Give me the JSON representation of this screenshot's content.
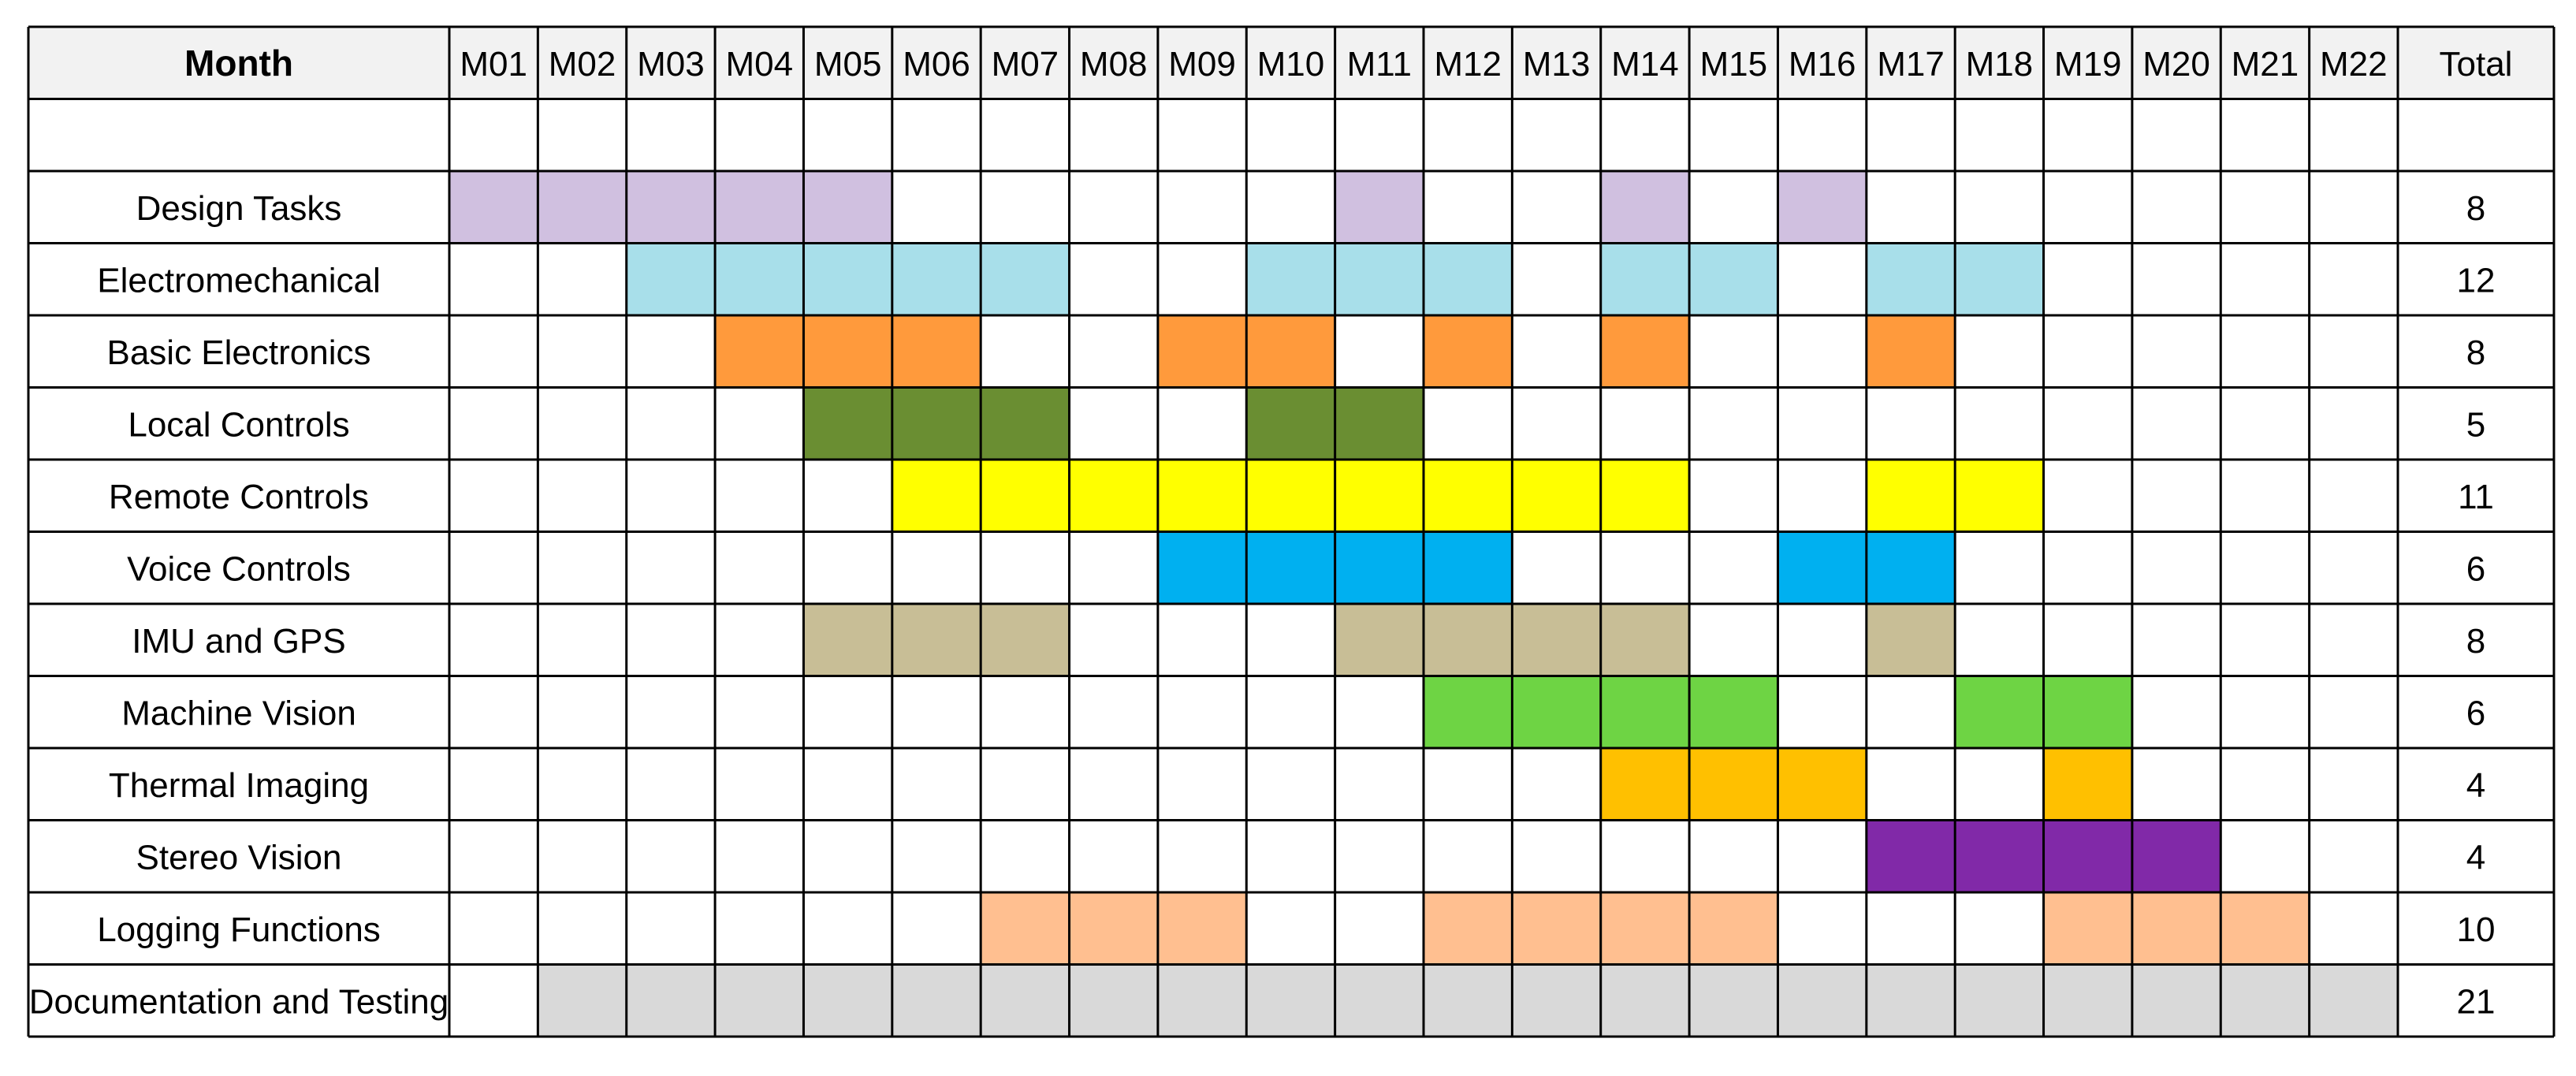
{
  "chart_data": {
    "type": "table",
    "header_label": "Month",
    "total_label": "Total",
    "months": [
      "M01",
      "M02",
      "M03",
      "M04",
      "M05",
      "M06",
      "M07",
      "M08",
      "M09",
      "M10",
      "M11",
      "M12",
      "M13",
      "M14",
      "M15",
      "M16",
      "M17",
      "M18",
      "M19",
      "M20",
      "M21",
      "M22"
    ],
    "tasks": [
      {
        "name": "Design Tasks",
        "color": "#D0C0E0",
        "months": [
          1,
          2,
          3,
          4,
          5,
          11,
          14,
          16
        ],
        "total": "8"
      },
      {
        "name": "Electromechanical",
        "color": "#A8DFEA",
        "months": [
          3,
          4,
          5,
          6,
          7,
          10,
          11,
          12,
          14,
          15,
          17,
          18
        ],
        "total": "12"
      },
      {
        "name": "Basic Electronics",
        "color": "#FF9A3C",
        "months": [
          4,
          5,
          6,
          9,
          10,
          12,
          14,
          17
        ],
        "total": "8"
      },
      {
        "name": "Local Controls",
        "color": "#6A8E32",
        "months": [
          5,
          6,
          7,
          10,
          11
        ],
        "total": "5"
      },
      {
        "name": "Remote Controls",
        "color": "#FFFF00",
        "months": [
          6,
          7,
          8,
          9,
          10,
          11,
          12,
          13,
          14,
          17,
          18
        ],
        "total": "11"
      },
      {
        "name": "Voice Controls",
        "color": "#00B0F0",
        "months": [
          9,
          10,
          11,
          12,
          16,
          17
        ],
        "total": "6"
      },
      {
        "name": "IMU and GPS",
        "color": "#C8BE96",
        "months": [
          5,
          6,
          7,
          11,
          12,
          13,
          14,
          17
        ],
        "total": "8"
      },
      {
        "name": "Machine Vision",
        "color": "#6ED444",
        "months": [
          12,
          13,
          14,
          15,
          18,
          19
        ],
        "total": "6"
      },
      {
        "name": "Thermal Imaging",
        "color": "#FFC000",
        "months": [
          14,
          15,
          16,
          19
        ],
        "total": "4"
      },
      {
        "name": "Stereo Vision",
        "color": "#8129A8",
        "months": [
          17,
          18,
          19,
          20
        ],
        "total": "4"
      },
      {
        "name": "Logging Functions",
        "color": "#FFBF90",
        "months": [
          7,
          8,
          9,
          12,
          13,
          14,
          15,
          19,
          20,
          21
        ],
        "total": "10"
      },
      {
        "name": "Documentation and Testing",
        "color": "#D9D9D9",
        "months": [
          2,
          3,
          4,
          5,
          6,
          7,
          8,
          9,
          10,
          11,
          12,
          13,
          14,
          15,
          16,
          17,
          18,
          19,
          20,
          21,
          22
        ],
        "total": "21"
      }
    ]
  },
  "colors": {
    "header_bg": "#F2F2F2",
    "grid": "#000000",
    "cell_bg": "#FFFFFF"
  }
}
